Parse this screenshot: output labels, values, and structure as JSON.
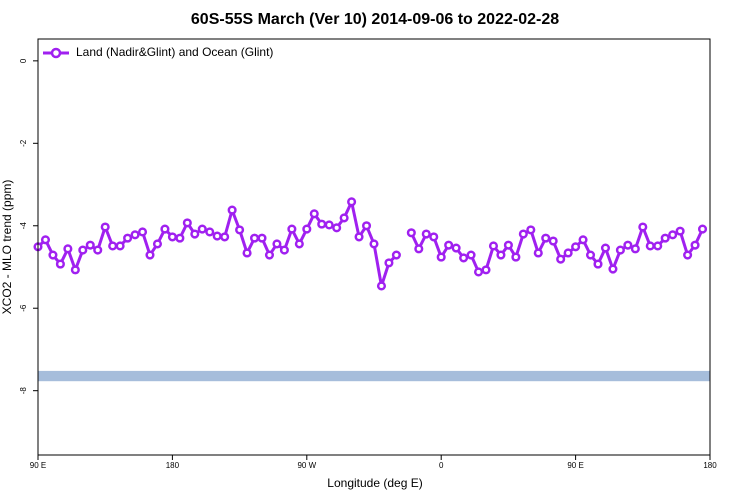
{
  "chart_data": {
    "type": "line",
    "title": "60S-55S March (Ver 10)   2014-09-06 to 2022-02-28",
    "xlabel": "Longitude (deg E)",
    "ylabel": "XCO2 - MLO trend (ppm)",
    "x": [
      90,
      95,
      100,
      105,
      110,
      115,
      120,
      125,
      130,
      135,
      140,
      145,
      150,
      155,
      160,
      165,
      170,
      175,
      180,
      185,
      190,
      195,
      200,
      205,
      210,
      215,
      220,
      225,
      230,
      235,
      240,
      245,
      250,
      255,
      260,
      265,
      270,
      275,
      280,
      285,
      290,
      295,
      300,
      305,
      310,
      315,
      320,
      325,
      330,
      335,
      340,
      345,
      350,
      355,
      360,
      365,
      370,
      375,
      380,
      385,
      390,
      395,
      400,
      405,
      410,
      415,
      420,
      425,
      430,
      435,
      440,
      445,
      450,
      455,
      460,
      465,
      470,
      475,
      480,
      485,
      490,
      495,
      500,
      505,
      510,
      515,
      520,
      525,
      530,
      535
    ],
    "series": [
      {
        "name": "Land (Nadir&Glint) and Ocean (Glint)",
        "color": "#a020f0",
        "values": [
          -4.51,
          -4.34,
          -4.71,
          -4.93,
          -4.56,
          -5.07,
          -4.59,
          -4.47,
          -4.59,
          -4.03,
          -4.49,
          -4.49,
          -4.3,
          -4.22,
          -4.15,
          -4.71,
          -4.44,
          -4.08,
          -4.27,
          -4.3,
          -3.93,
          -4.2,
          -4.08,
          -4.15,
          -4.25,
          -4.27,
          -3.62,
          -4.1,
          -4.66,
          -4.3,
          -4.3,
          -4.71,
          -4.44,
          -4.59,
          -4.08,
          -4.44,
          -4.08,
          -3.71,
          -3.96,
          -3.98,
          -4.05,
          -3.81,
          -3.42,
          -4.27,
          -4.0,
          -4.44,
          -5.46,
          -4.9,
          -4.71,
          null,
          -4.17,
          -4.56,
          -4.2,
          -4.27,
          -4.76,
          -4.47,
          -4.54,
          -4.78,
          -4.71,
          -5.12,
          -5.07,
          -4.49,
          -4.71,
          -4.47,
          -4.76,
          -4.2,
          -4.1,
          -4.66,
          -4.3,
          -4.37,
          -4.81,
          -4.66,
          -4.51,
          -4.34,
          -4.71,
          -4.93,
          -4.54,
          -5.05,
          -4.59,
          -4.47,
          -4.56,
          -4.03,
          -4.49,
          -4.49,
          -4.3,
          -4.22,
          -4.13,
          -4.71,
          -4.47,
          -4.08
        ]
      }
    ],
    "reference_band": {
      "ymin": -7.77,
      "ymax": -7.52,
      "color": "#a6bddb"
    },
    "xlim": [
      90,
      540
    ],
    "xticks": [
      {
        "value": 90,
        "label": "90 E"
      },
      180,
      {
        "value": 270,
        "label": "90 W"
      },
      {
        "value": 360,
        "label": "0"
      },
      {
        "value": 450,
        "label": "90 E"
      },
      {
        "value": 540,
        "label": "180"
      }
    ],
    "ylim": [
      -9.56,
      0.53
    ],
    "yticks": [
      0,
      -2,
      -4,
      -6,
      -8
    ],
    "legend": "top-left"
  }
}
